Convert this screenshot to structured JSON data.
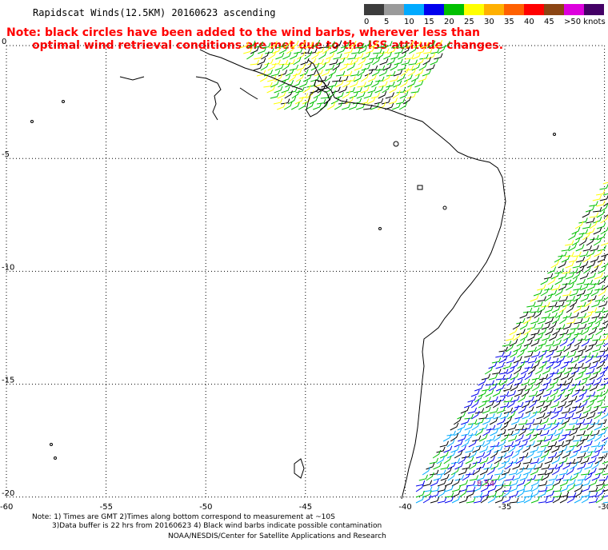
{
  "header": {
    "title": "Rapidscat Winds(12.5KM) 20160623 ascending",
    "note_line1": "Note: black circles have been added to the wind barbs, wherever less than",
    "note_line2": "optimal wind retrieval conditions are met due to the ISS attitude changes."
  },
  "colorbar": {
    "colors": [
      "#3c3c3c",
      "#9a9a9a",
      "#00aaff",
      "#0000ee",
      "#00c000",
      "#ffff00",
      "#ffb000",
      "#ff6000",
      "#ff0000",
      "#8b4513",
      "#dd00dd",
      "#440066"
    ],
    "labels": [
      "0",
      "5",
      "10",
      "15",
      "20",
      "25",
      "30",
      "35",
      "40",
      "45",
      ">50 knots"
    ]
  },
  "axes": {
    "lat_labels": [
      "0",
      "-5",
      "-10",
      "-15",
      "-20"
    ],
    "lon_labels": [
      "-60",
      "-55",
      "-50",
      "-45",
      "-40",
      "-35",
      "-30"
    ]
  },
  "annotation": "8.54",
  "footer": {
    "line1": "Note: 1) Times are GMT 2)Times along bottom correspond to measurement at ~10S",
    "line2": "3)Data buffer is 22 hrs from 20160623 4) Black wind barbs indicate possible contamination",
    "line3": "NOAA/NESDIS/Center for Satellite Applications and Research"
  }
}
